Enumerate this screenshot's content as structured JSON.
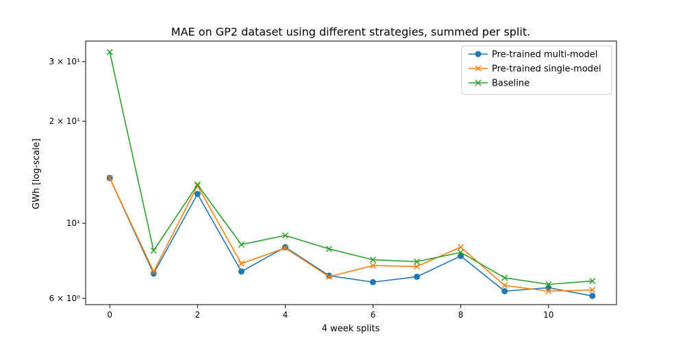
{
  "chart_data": {
    "type": "line",
    "title": "MAE on GP2 dataset using different strategies, summed per split.",
    "xlabel": "4 week splits",
    "ylabel": "GWh [log-scale]",
    "yscale": "log",
    "xlim": [
      -0.55,
      11.55
    ],
    "ylim": [
      5.75,
      34.5
    ],
    "x": [
      0,
      1,
      2,
      3,
      4,
      5,
      6,
      7,
      8,
      9,
      10,
      11
    ],
    "x_ticks": [
      {
        "value": 0,
        "label": "0"
      },
      {
        "value": 2,
        "label": "2"
      },
      {
        "value": 4,
        "label": "4"
      },
      {
        "value": 6,
        "label": "6"
      },
      {
        "value": 8,
        "label": "8"
      },
      {
        "value": 10,
        "label": "10"
      }
    ],
    "y_ticks": [
      {
        "value": 6,
        "label": "6 × 10⁰"
      },
      {
        "value": 10,
        "label": "10¹"
      },
      {
        "value": 20,
        "label": "2 × 10¹"
      },
      {
        "value": 30,
        "label": "3 × 10¹"
      }
    ],
    "series": [
      {
        "name": "Pre-trained multi-model",
        "color": "#1f77b4",
        "marker": "circle",
        "values": [
          13.6,
          7.1,
          12.2,
          7.2,
          8.5,
          7.0,
          6.7,
          6.95,
          8.0,
          6.3,
          6.45,
          6.1
        ]
      },
      {
        "name": "Pre-trained single-model",
        "color": "#ff7f0e",
        "marker": "x",
        "values": [
          13.6,
          7.2,
          12.9,
          7.6,
          8.45,
          6.95,
          7.5,
          7.45,
          8.5,
          6.55,
          6.3,
          6.35
        ]
      },
      {
        "name": "Baseline",
        "color": "#2ca02c",
        "marker": "x",
        "values": [
          32.0,
          8.3,
          13.0,
          8.65,
          9.2,
          8.4,
          7.8,
          7.7,
          8.2,
          6.9,
          6.6,
          6.75
        ]
      }
    ],
    "legend_position": "top-right",
    "grid": false
  }
}
